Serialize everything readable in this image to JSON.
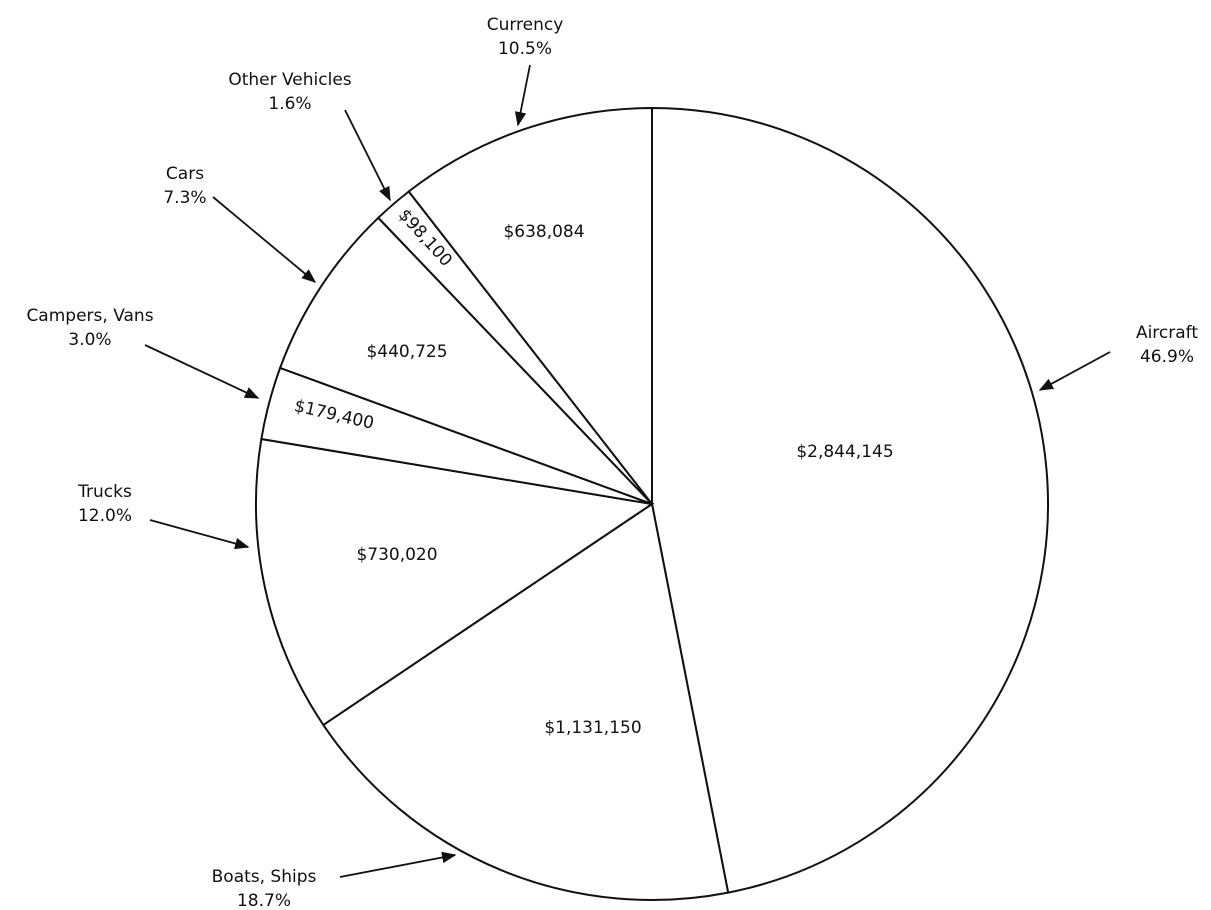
{
  "chart_data": {
    "type": "pie",
    "categories": [
      "Aircraft",
      "Boats, Ships",
      "Trucks",
      "Campers, Vans",
      "Cars",
      "Other Vehicles",
      "Currency"
    ],
    "values": [
      2844145,
      1131150,
      730020,
      179400,
      440725,
      98100,
      638084
    ],
    "value_labels": [
      "$2,844,145",
      "$1,131,150",
      "$730,020",
      "$179,400",
      "$440,725",
      "$98,100",
      "$638,084"
    ],
    "percent_labels": [
      "46.9%",
      "18.7%",
      "12.0%",
      "3.0%",
      "7.3%",
      "1.6%",
      "10.5%"
    ],
    "color": "#ffffff"
  }
}
